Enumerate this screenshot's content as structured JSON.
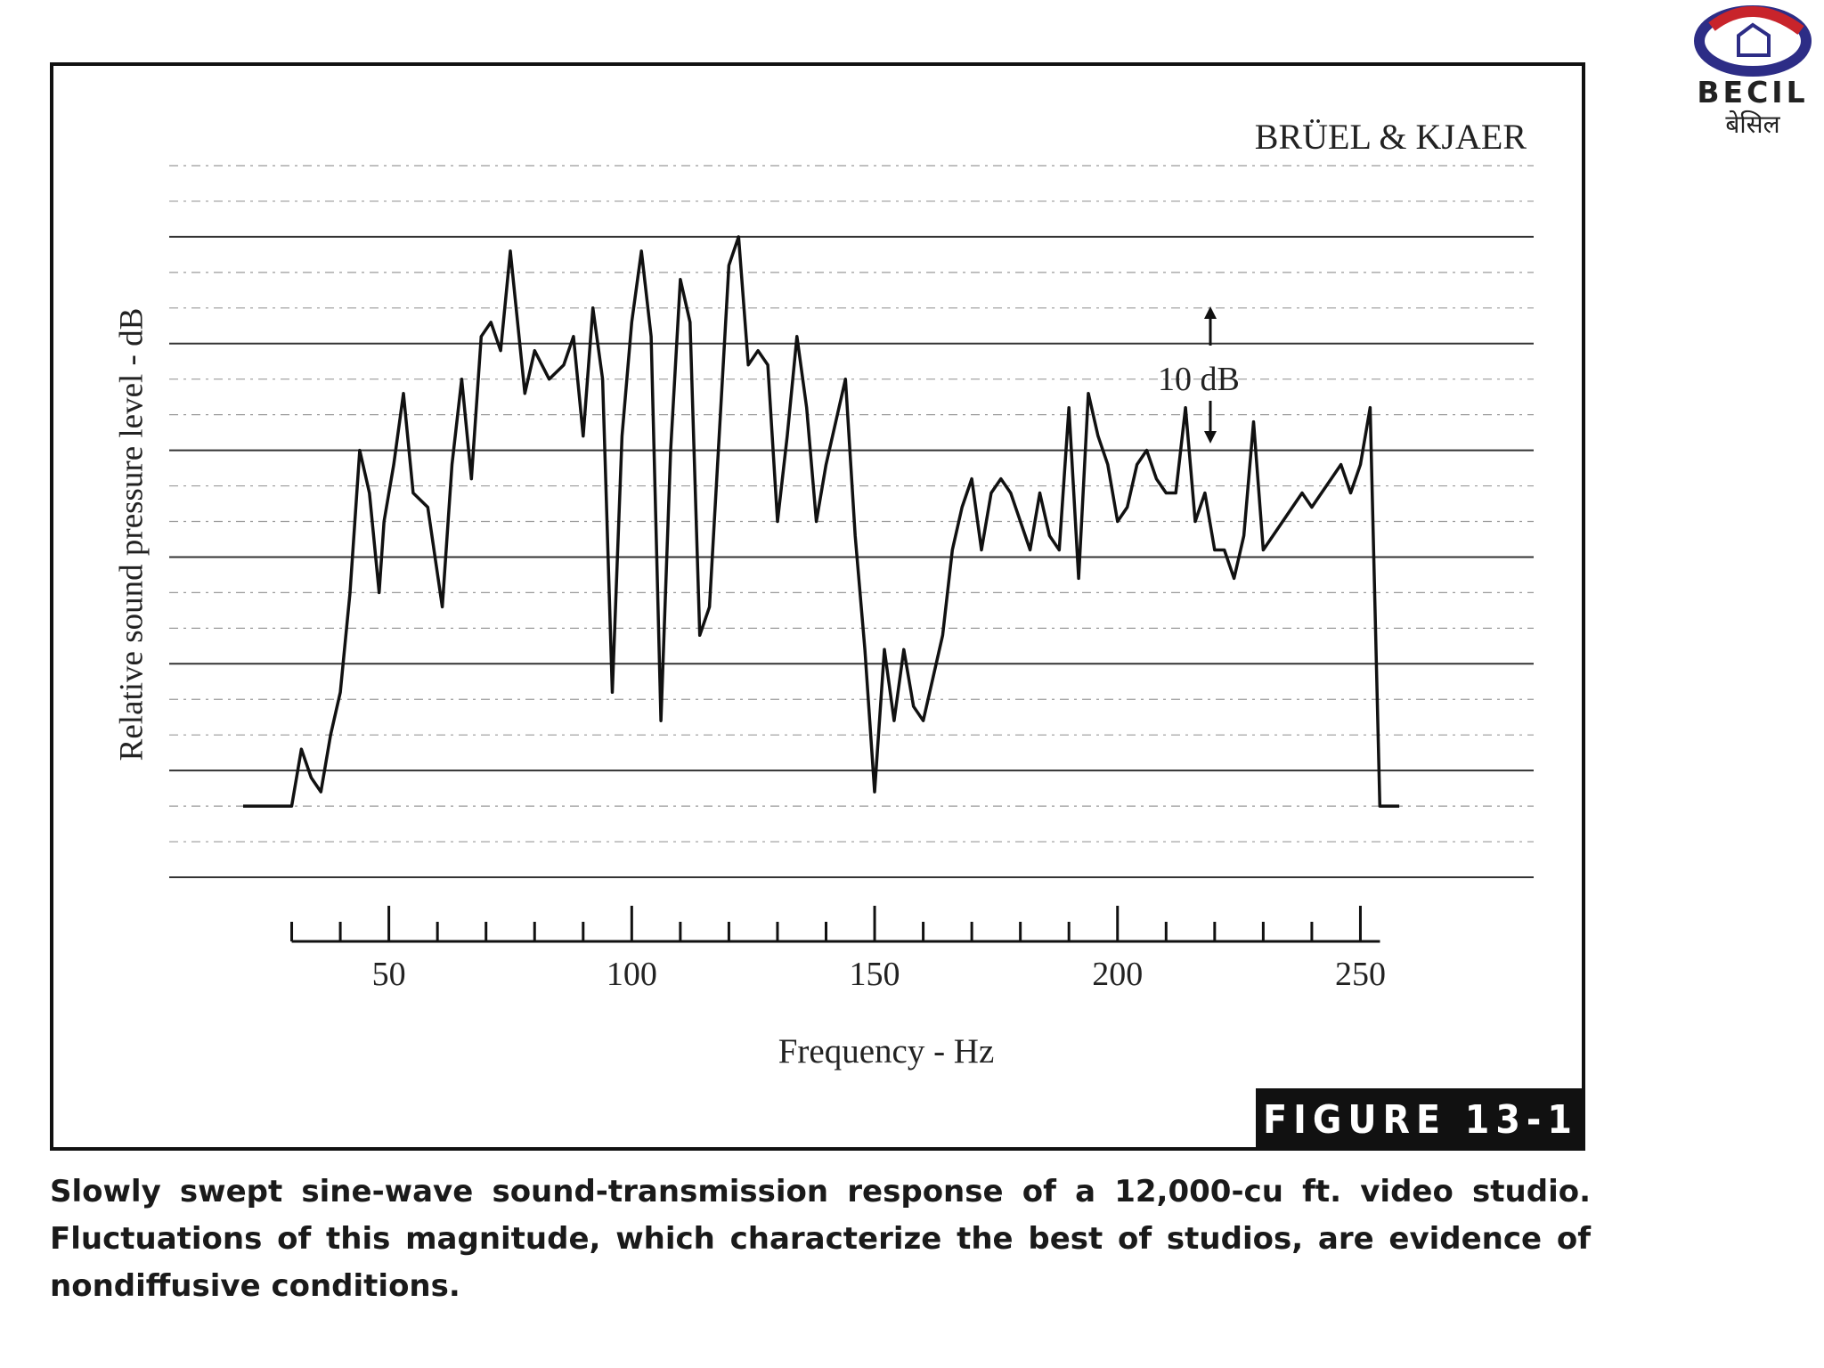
{
  "logo": {
    "text": "BECIL",
    "subtext": "बेसिल"
  },
  "figure": {
    "brand": "BRÜEL & KJAER",
    "scale_annotation": "10 dB",
    "badge": "FIGURE 13-1",
    "caption": "Slowly swept sine-wave sound-transmission response of a 12,000-cu ft. video studio. Fluctuations of this magnitude, which characterize the best of studios, are evidence of nondiffusive conditions."
  },
  "chart_data": {
    "type": "line",
    "title": "",
    "xlabel": "Frequency - Hz",
    "ylabel": "Relative sound pressure level - dB",
    "xlim": [
      20,
      260
    ],
    "ylim": [
      -5,
      45
    ],
    "grid": true,
    "x_tick_labels": [
      "50",
      "100",
      "150",
      "200",
      "250"
    ],
    "x_ticks_major": [
      50,
      100,
      150,
      200,
      250
    ],
    "x_ticks_minor": [
      30,
      40,
      60,
      70,
      80,
      90,
      110,
      120,
      130,
      140,
      160,
      170,
      180,
      190,
      210,
      220,
      230,
      240,
      260
    ],
    "series": [
      {
        "x": [
          20,
          25,
          30,
          32,
          34,
          36,
          38,
          40,
          42,
          44,
          46,
          48,
          49,
          51,
          53,
          55,
          58,
          61,
          63,
          65,
          67,
          69,
          71,
          73,
          75,
          78,
          80,
          83,
          86,
          88,
          90,
          92,
          94,
          96,
          98,
          100,
          102,
          104,
          106,
          108,
          110,
          112,
          114,
          116,
          118,
          120,
          122,
          124,
          126,
          128,
          130,
          132,
          134,
          136,
          138,
          140,
          142,
          144,
          146,
          148,
          150,
          152,
          154,
          156,
          158,
          160,
          162,
          164,
          166,
          168,
          170,
          172,
          174,
          176,
          178,
          180,
          182,
          184,
          186,
          188,
          190,
          192,
          194,
          196,
          198,
          200,
          202,
          204,
          206,
          208,
          210,
          212,
          214,
          216,
          218,
          220,
          222,
          224,
          226,
          228,
          230,
          232,
          234,
          236,
          238,
          240,
          242,
          244,
          246,
          248,
          250,
          252,
          254,
          256,
          258
        ],
        "y": [
          0,
          0,
          0,
          4,
          2,
          1,
          5,
          8,
          15,
          25,
          22,
          15,
          20,
          24,
          29,
          22,
          21,
          14,
          24,
          30,
          23,
          33,
          34,
          32,
          39,
          29,
          32,
          30,
          31,
          33,
          26,
          35,
          30,
          8,
          26,
          34,
          39,
          33,
          6,
          25,
          37,
          34,
          12,
          14,
          26,
          38,
          40,
          31,
          32,
          31,
          20,
          26,
          33,
          28,
          20,
          24,
          27,
          30,
          19,
          11,
          1,
          11,
          6,
          11,
          7,
          6,
          9,
          12,
          18,
          21,
          23,
          18,
          22,
          23,
          22,
          20,
          18,
          22,
          19,
          18,
          28,
          16,
          29,
          26,
          24,
          20,
          21,
          24,
          25,
          23,
          22,
          22,
          28,
          20,
          22,
          18,
          18,
          16,
          19,
          27,
          18,
          19,
          20,
          21,
          22,
          21,
          22,
          23,
          24,
          22,
          24,
          28,
          0,
          0,
          0
        ]
      }
    ]
  }
}
